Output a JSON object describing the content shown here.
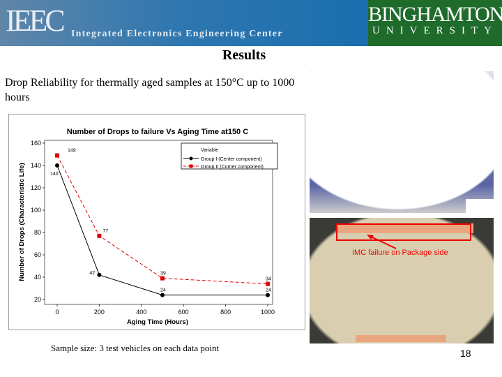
{
  "header": {
    "logo_left": "IEEC",
    "logo_left_sub": "Integrated Electronics Engineering Center",
    "logo_right_1": "BINGHAMTON",
    "logo_right_2": "UNIVERSITY"
  },
  "slide": {
    "title": "Results",
    "description": "Drop Reliability for thermally aged samples at 150°C up to 1000 hours",
    "note": "Sample size: 3 test vehicles on each data point",
    "annotation": "IMC failure on Package side",
    "page_number": "18"
  },
  "colors": {
    "group1": "#000000",
    "group2": "#e00000",
    "banner": "#1b6fae",
    "university": "#1f6b2c"
  },
  "chart_data": {
    "type": "line",
    "title": "Number of Drops to failure Vs Aging Time at150 C",
    "xlabel": "Aging Time (Hours)",
    "ylabel": "Number of Drops (Characteristic Life)",
    "xlim": [
      0,
      1000
    ],
    "ylim": [
      20,
      160
    ],
    "xticks": [
      0,
      200,
      400,
      600,
      800,
      1000
    ],
    "yticks": [
      20,
      40,
      60,
      80,
      100,
      120,
      140,
      160
    ],
    "legend_title": "Variable",
    "legend_position": "top-right",
    "grid": false,
    "x": [
      0,
      200,
      500,
      1000
    ],
    "series": [
      {
        "name": "Group I (Center component)",
        "values": [
          140,
          42,
          24,
          24
        ],
        "labels": [
          "140",
          "42",
          "24",
          "24"
        ],
        "marker": "circle",
        "style": "solid"
      },
      {
        "name": "Group II (Corner component)",
        "values": [
          149,
          77,
          39,
          34
        ],
        "labels": [
          "149",
          "77",
          "39",
          "34"
        ],
        "marker": "square",
        "style": "dashed"
      }
    ]
  }
}
